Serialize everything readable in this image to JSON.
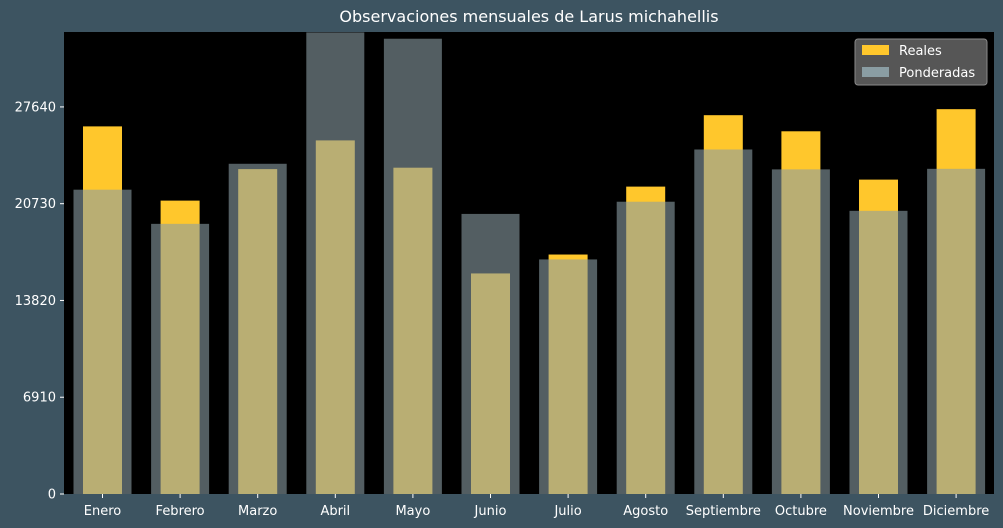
{
  "chart_data": {
    "type": "bar",
    "title": "Observaciones mensuales de Larus michahellis",
    "xlabel": "",
    "ylabel": "",
    "categories": [
      "Enero",
      "Febrero",
      "Marzo",
      "Abril",
      "Mayo",
      "Junio",
      "Julio",
      "Agosto",
      "Septiembre",
      "Octubre",
      "Noviembre",
      "Diciembre"
    ],
    "series": [
      {
        "name": "Reales",
        "color": "#ffc72c",
        "values": [
          26250,
          20950,
          23200,
          25250,
          23300,
          15750,
          17100,
          21950,
          27050,
          25900,
          22450,
          27480
        ]
      },
      {
        "name": "Ponderadas",
        "color": "#8a9da3",
        "values": [
          21730,
          19290,
          23580,
          32960,
          32510,
          20000,
          16750,
          20870,
          24600,
          23180,
          20220,
          23220
        ]
      }
    ],
    "yticks": [
      0,
      6910,
      13820,
      20730,
      27640
    ],
    "ylim": [
      0,
      32990
    ],
    "legend_position": "top-right",
    "grid": false
  }
}
